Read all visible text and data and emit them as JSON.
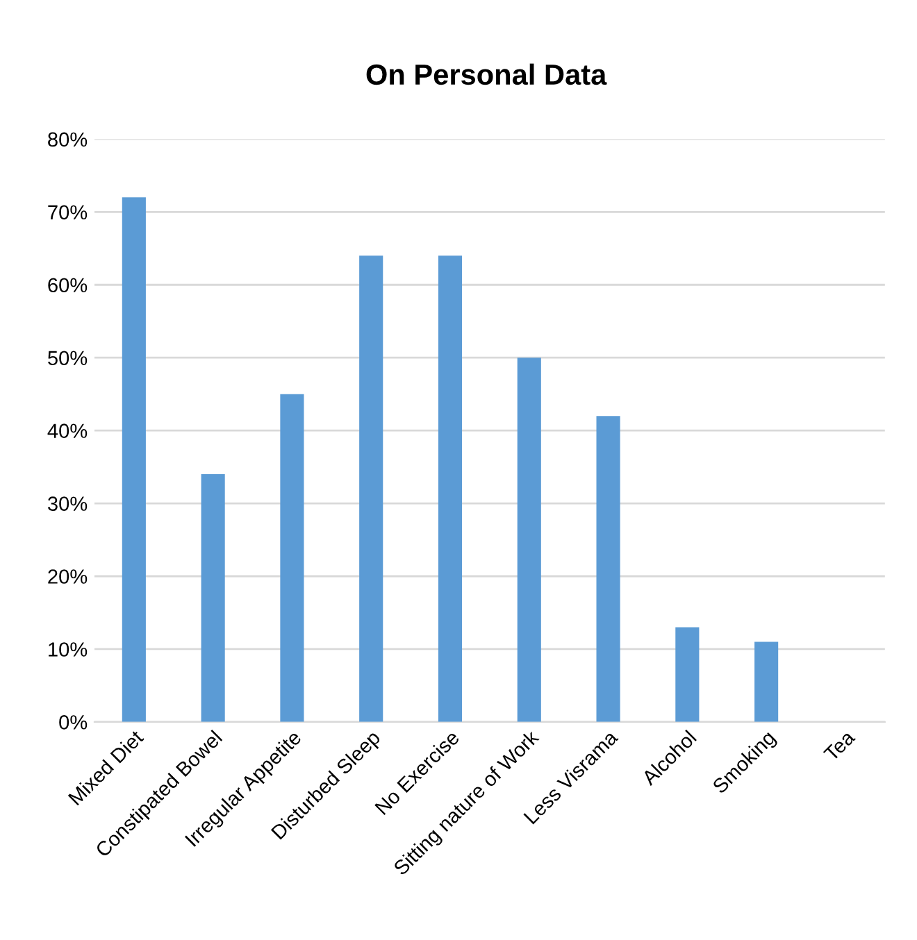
{
  "chart_data": {
    "type": "bar",
    "title": "On Personal Data",
    "categories": [
      "Mixed Diet",
      "Constipated Bowel",
      "Irregular Appetite",
      "Disturbed Sleep",
      "No Exercise",
      "Sitting nature of Work",
      "Less Visrama",
      "Alcohol",
      "Smoking",
      "Tea"
    ],
    "values": [
      72,
      34,
      45,
      64,
      64,
      50,
      42,
      13,
      11,
      0
    ],
    "color": "#5b9bd5",
    "ylim": [
      0,
      80
    ],
    "yticks": [
      {
        "value": 0,
        "label": "0%"
      },
      {
        "value": 10,
        "label": "10%"
      },
      {
        "value": 20,
        "label": "20%"
      },
      {
        "value": 30,
        "label": "30%"
      },
      {
        "value": 40,
        "label": "40%"
      },
      {
        "value": 50,
        "label": "50%"
      },
      {
        "value": 60,
        "label": "60%"
      },
      {
        "value": 70,
        "label": "70%"
      },
      {
        "value": 80,
        "label": "80%"
      }
    ],
    "grid": "y",
    "legend": false
  }
}
